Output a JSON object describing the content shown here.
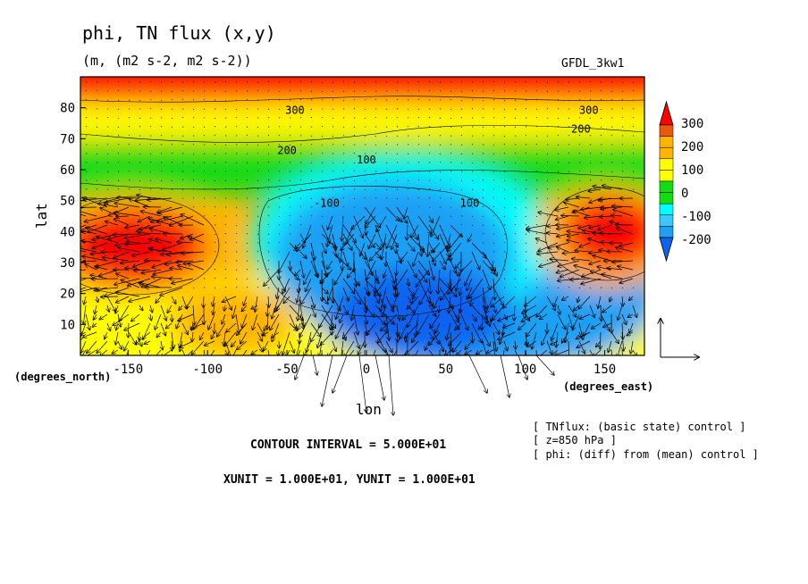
{
  "chart_data": {
    "type": "heatmap",
    "title": "phi, TN flux (x,y)",
    "subtitle": "(m, (m2 s-2, m2 s-2))",
    "model": "GFDL_3kw1",
    "xlabel": "lon",
    "x_unit_label": "(degrees_east)",
    "ylabel": "lat",
    "y_unit_label": "(degrees_north)",
    "xlim": [
      -180,
      175
    ],
    "ylim": [
      0,
      90
    ],
    "x_ticks": [
      "-150",
      "-100",
      "-50",
      "0",
      "50",
      "100",
      "150"
    ],
    "y_ticks": [
      "10",
      "20",
      "30",
      "40",
      "50",
      "60",
      "70",
      "80"
    ],
    "colorbar": {
      "labels": [
        "300",
        "200",
        "100",
        "0",
        "-100",
        "-200"
      ],
      "levels": [
        -250,
        -200,
        -150,
        -100,
        -50,
        0,
        50,
        100,
        150,
        200,
        250,
        300
      ],
      "colors": [
        "#0a64f0",
        "#1ea0f5",
        "#3cc8ff",
        "#00ffff",
        "#14dc14",
        "#14dc14",
        "#ffff00",
        "#ffff00",
        "#ffb400",
        "#ffb400",
        "#eb5a0a",
        "#ff0000"
      ]
    },
    "contour_labels": [
      {
        "text": "300",
        "lon": -45,
        "lat": 78
      },
      {
        "text": "300",
        "lon": 140,
        "lat": 78
      },
      {
        "text": "200",
        "lon": -50,
        "lat": 65
      },
      {
        "text": "200",
        "lon": 135,
        "lat": 72
      },
      {
        "text": "100",
        "lon": 0,
        "lat": 62
      },
      {
        "text": "100",
        "lon": 65,
        "lat": 48
      },
      {
        "text": "-100",
        "lon": -25,
        "lat": 48
      }
    ],
    "field_features": [
      {
        "name": "high-latitude ridge",
        "value": 300,
        "lon_range": [
          -180,
          175
        ],
        "lat_range": [
          80,
          90
        ]
      },
      {
        "name": "north pacific high",
        "value": 300,
        "lon": -135,
        "lat": 37
      },
      {
        "name": "east asia high",
        "value": 300,
        "lon": 155,
        "lat": 42
      },
      {
        "name": "atlantic-eurasia low",
        "value": -250,
        "lon": 30,
        "lat": 30
      }
    ],
    "grid": false,
    "legend": "right"
  },
  "notes": {
    "contour_interval": "CONTOUR INTERVAL = 5.000E+01",
    "units": "XUNIT = 1.000E+01, YUNIT = 1.000E+01",
    "info": [
      "[ TNflux: (basic state) control ]",
      "[ z=850 hPa ]",
      "[ phi: (diff) from (mean) control ]"
    ]
  }
}
